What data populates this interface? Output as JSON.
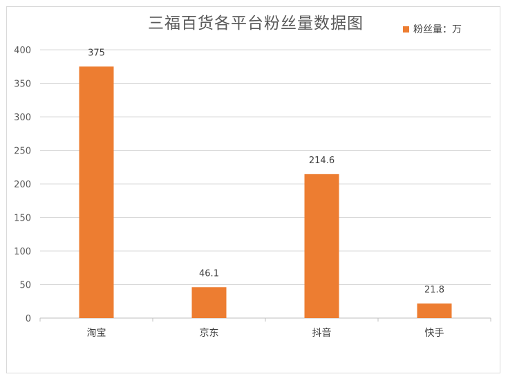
{
  "chart_data": {
    "type": "bar",
    "title": "三福百货各平台粉丝量数据图",
    "categories": [
      "淘宝",
      "京东",
      "抖音",
      "快手"
    ],
    "series": [
      {
        "name": "粉丝量：万",
        "values": [
          375,
          46.1,
          214.6,
          21.8
        ]
      }
    ],
    "data_labels": [
      "375",
      "46.1",
      "214.6",
      "21.8"
    ],
    "ylim": [
      0,
      400
    ],
    "yticks": [
      0,
      50,
      100,
      150,
      200,
      250,
      300,
      350,
      400
    ],
    "grid": true,
    "legend_position": "top-right",
    "bar_color": "#ed7d31"
  }
}
